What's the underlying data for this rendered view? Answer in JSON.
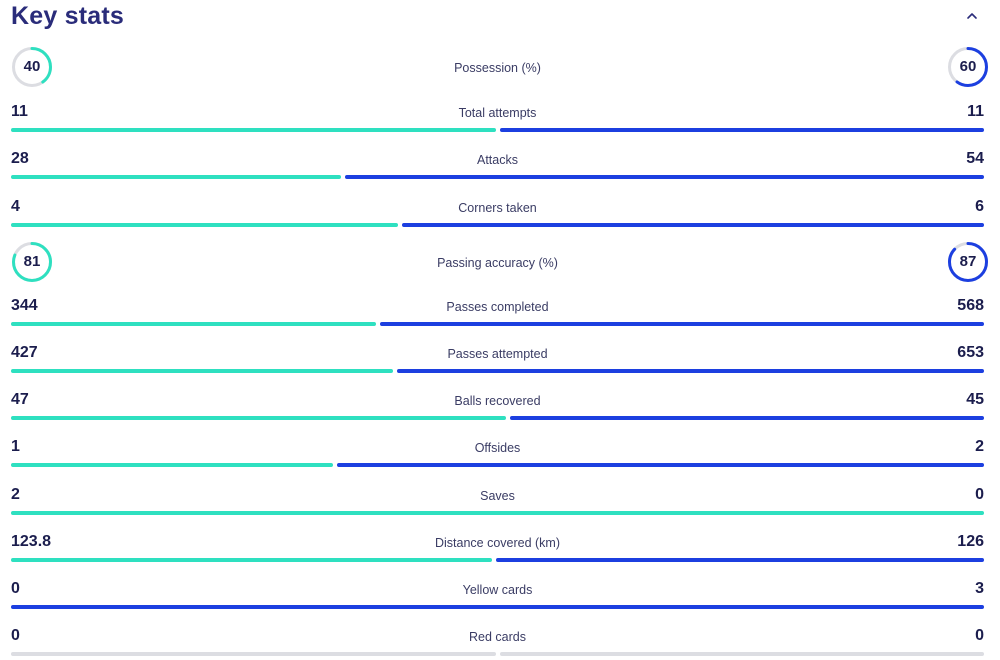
{
  "title": "Key stats",
  "colors": {
    "home": "#2ee0c0",
    "away": "#1c3fe0",
    "track": "#dcdde2",
    "text": "#1b1d4d"
  },
  "icons": {
    "collapse": "chevron-up-icon"
  },
  "ring_stats": [
    {
      "label": "Possession (%)",
      "home": "40",
      "away": "60",
      "home_fraction": 0.4,
      "away_fraction": 0.6
    },
    {
      "label": "Passing accuracy (%)",
      "home": "81",
      "away": "87",
      "home_fraction": 0.81,
      "away_fraction": 0.87
    }
  ],
  "bar_stats": [
    {
      "label": "Total attempts",
      "home": "11",
      "away": "11",
      "home_share": 0.5
    },
    {
      "label": "Attacks",
      "home": "28",
      "away": "54",
      "home_share": 0.341
    },
    {
      "label": "Corners taken",
      "home": "4",
      "away": "6",
      "home_share": 0.4
    },
    {
      "label": "Passes completed",
      "home": "344",
      "away": "568",
      "home_share": 0.377
    },
    {
      "label": "Passes attempted",
      "home": "427",
      "away": "653",
      "home_share": 0.395
    },
    {
      "label": "Balls recovered",
      "home": "47",
      "away": "45",
      "home_share": 0.511
    },
    {
      "label": "Offsides",
      "home": "1",
      "away": "2",
      "home_share": 0.333
    },
    {
      "label": "Saves",
      "home": "2",
      "away": "0",
      "home_share": 1.0
    },
    {
      "label": "Distance covered (km)",
      "home": "123.8",
      "away": "126",
      "home_share": 0.496
    },
    {
      "label": "Yellow cards",
      "home": "0",
      "away": "3",
      "home_share": 0.0
    },
    {
      "label": "Red cards",
      "home": "0",
      "away": "0",
      "home_share": null
    }
  ]
}
